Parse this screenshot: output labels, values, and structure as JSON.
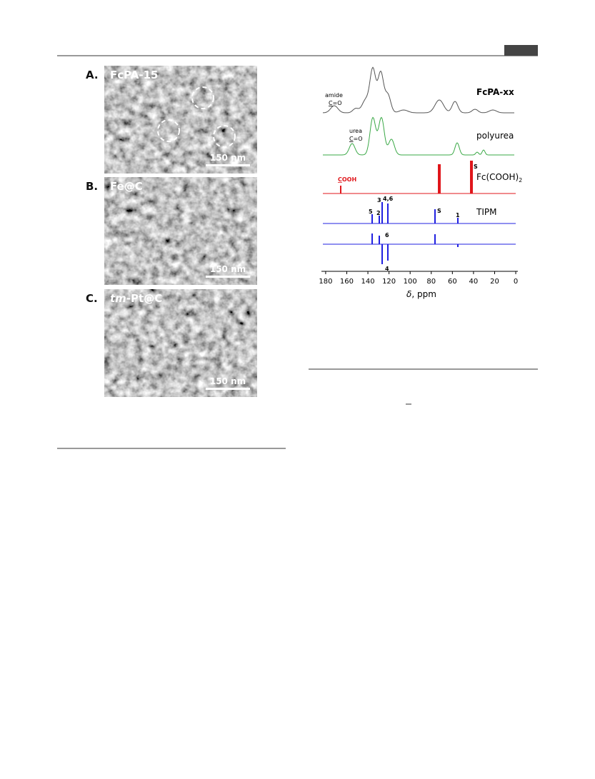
{
  "figure_left": {
    "panels": [
      {
        "letter": "A.",
        "label": "FcPA-15",
        "scale_bar": "150 nm"
      },
      {
        "letter": "B.",
        "label": "Fe@C",
        "scale_bar": "150 nm"
      },
      {
        "letter": "C.",
        "label_italic": "tm",
        "label": "-Pt@C",
        "scale_bar": "150 nm"
      }
    ]
  },
  "figure_right": {
    "traces": {
      "fcpa": {
        "name": "FcPA-xx",
        "note": "amide",
        "note_c": "C",
        "note_rest": "=O"
      },
      "polyurea": {
        "name": "polyurea",
        "note": "urea",
        "note_c": "C",
        "note_rest": "=O"
      },
      "fc": {
        "name": "Fc(COOH)",
        "sub": "2",
        "note_c": "C",
        "note_rest": "OOH",
        "solvent": "S"
      },
      "tipm": {
        "name": "TIPM",
        "peaks": [
          "5",
          "2",
          "3",
          "4,6",
          "S",
          "1"
        ],
        "dept": [
          "6",
          "4"
        ]
      }
    },
    "x_axis": {
      "xlim": [
        184,
        -2
      ],
      "xticks": [
        180,
        160,
        140,
        120,
        100,
        80,
        60,
        40,
        20,
        0
      ],
      "label_symbol": "δ",
      "label": ", ppm"
    }
  }
}
